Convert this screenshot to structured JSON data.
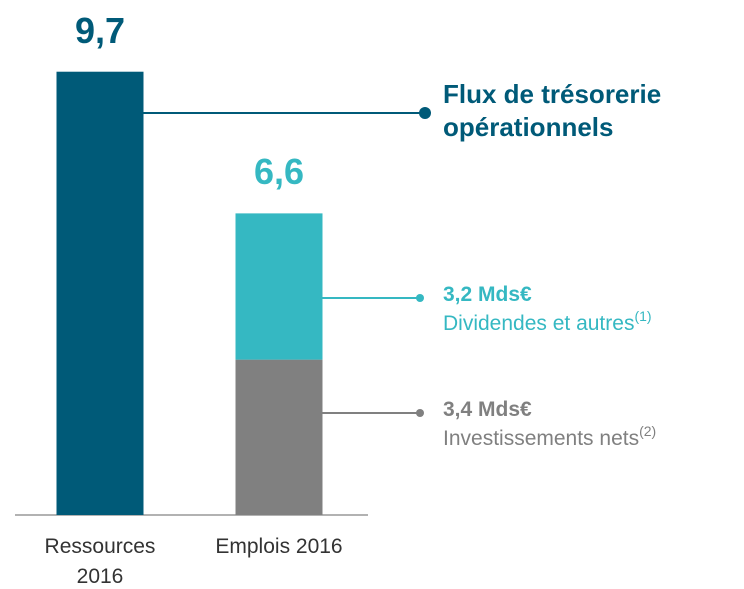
{
  "chart_data": {
    "type": "stacked_bar",
    "categories": [
      "Ressources 2016",
      "Emplois 2016"
    ],
    "series": [
      {
        "name": "Flux de trésorerie opérationnels",
        "color": "#005a78",
        "values": [
          9.7,
          null
        ]
      },
      {
        "name": "Investissements nets",
        "footnote": "(2)",
        "color": "#808080",
        "values": [
          null,
          3.4
        ],
        "value_labels": [
          null,
          "3,4 Mds€"
        ]
      },
      {
        "name": "Dividendes et autres",
        "footnote": "(1)",
        "color": "#35b8c2",
        "values": [
          null,
          3.2
        ],
        "value_labels": [
          null,
          "3,2 Mds€"
        ]
      }
    ],
    "totals": [
      9.7,
      6.6
    ],
    "total_labels": [
      "9,7",
      "6,6"
    ],
    "total_colors": [
      "#005a78",
      "#35b8c2"
    ],
    "ylim": [
      0,
      10
    ]
  }
}
